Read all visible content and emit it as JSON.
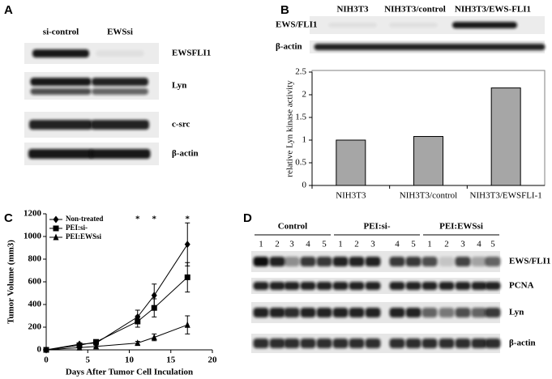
{
  "panels": {
    "a": {
      "label": "A",
      "columns": [
        "si-control",
        "EWSsi"
      ],
      "rows": [
        "EWSFLI1",
        "Lyn",
        "c-src",
        "β-actin"
      ]
    },
    "b": {
      "label": "B",
      "columns": [
        "NIH3T3",
        "NIH3T3/control",
        "NIH3T3/EWS-FLI1"
      ],
      "rows": [
        "EWS/FLI1",
        "β-actin"
      ]
    },
    "c": {
      "label": "C"
    },
    "d": {
      "label": "D",
      "groups": [
        {
          "name": "Control",
          "lanes": [
            "1",
            "2",
            "3",
            "4",
            "5"
          ]
        },
        {
          "name": "PEI:si-",
          "lanes": [
            "1",
            "2",
            "3",
            "4",
            "5"
          ]
        },
        {
          "name": "PEI:EWSsi",
          "lanes": [
            "1",
            "2",
            "3",
            "4",
            "5"
          ]
        }
      ],
      "rows": [
        "EWS/FLI1",
        "PCNA",
        "Lyn",
        "β-actin"
      ]
    }
  },
  "chart_data": [
    {
      "type": "bar",
      "y_label": "relative Lyn kinase activity",
      "categories": [
        "NIH3T3",
        "NIH3T3/control",
        "NIH3T3/EWSFLI-1"
      ],
      "values": [
        1,
        1.08,
        2.15
      ],
      "color": "#a6a6a6",
      "ylim": [
        0,
        2.5
      ],
      "yticks": [
        0,
        0.5,
        1,
        1.5,
        2,
        2.5
      ],
      "grid": false
    },
    {
      "type": "line",
      "x_label": "Days After Tumor Cell Inculation",
      "y_label": "Tumor Volume (mm3)",
      "x": [
        0,
        4,
        6,
        11,
        13,
        17
      ],
      "series": [
        {
          "name": "Non-treated",
          "color": "#000000",
          "marker": "diamond",
          "values": [
            0,
            50,
            60,
            290,
            480,
            930
          ],
          "errors": [
            0,
            10,
            15,
            60,
            100,
            190
          ]
        },
        {
          "name": "PEI:si-",
          "color": "#000000",
          "marker": "square",
          "values": [
            0,
            40,
            70,
            250,
            370,
            640
          ],
          "errors": [
            0,
            10,
            15,
            50,
            80,
            130
          ]
        },
        {
          "name": "PEI:EWSsi",
          "color": "#000000",
          "marker": "triangle",
          "values": [
            0,
            20,
            30,
            60,
            110,
            220
          ],
          "errors": [
            0,
            5,
            10,
            15,
            30,
            80
          ]
        }
      ],
      "annotations": [
        {
          "text": "*",
          "x": 11
        },
        {
          "text": "*",
          "x": 13
        },
        {
          "text": "*",
          "x": 17
        }
      ],
      "xlim": [
        0,
        20
      ],
      "xticks": [
        0,
        5,
        10,
        15,
        20
      ],
      "ylim": [
        0,
        1200
      ],
      "yticks": [
        0,
        200,
        400,
        600,
        800,
        1000,
        1200
      ],
      "legend": "upper-left",
      "grid": false
    }
  ]
}
